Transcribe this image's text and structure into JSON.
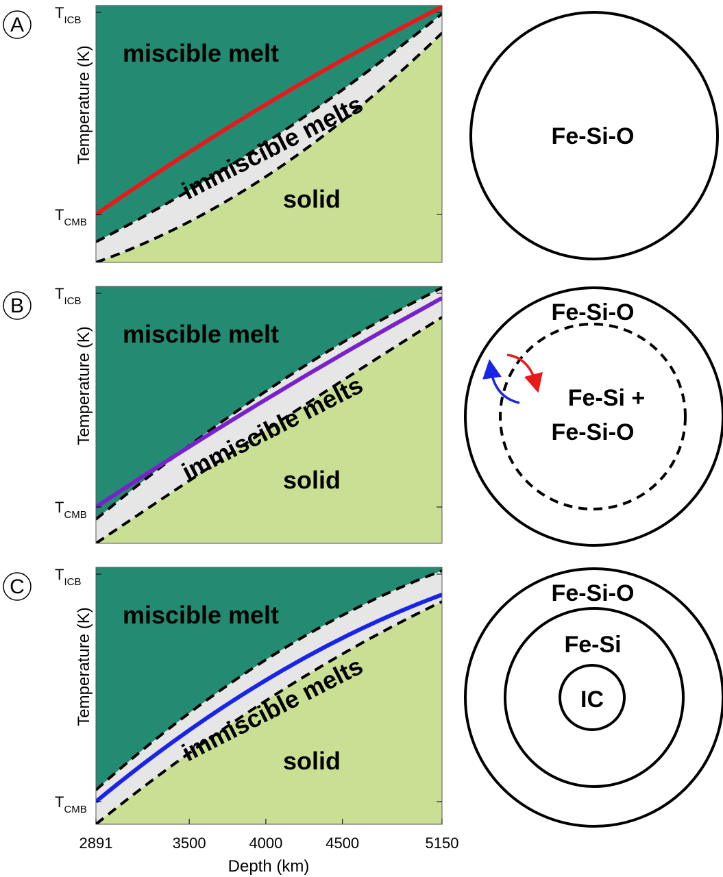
{
  "panels": [
    {
      "letter": "A",
      "y_label": "Temperature (K)",
      "y_ticks": [
        {
          "main": "T",
          "sub": "ICB"
        },
        {
          "main": "T",
          "sub": "CMB"
        }
      ],
      "regions": [
        "miscible melt",
        "immiscible melts",
        "solid"
      ],
      "core_labels": [
        "Fe-Si-O"
      ]
    },
    {
      "letter": "B",
      "y_label": "Temperature (K)",
      "y_ticks": [
        {
          "main": "T",
          "sub": "ICB"
        },
        {
          "main": "T",
          "sub": "CMB"
        }
      ],
      "regions": [
        "miscible melt",
        "immiscible melts",
        "solid"
      ],
      "core_labels": [
        "Fe-Si-O",
        "Fe-Si +",
        "Fe-Si-O"
      ]
    },
    {
      "letter": "C",
      "y_label": "Temperature (K)",
      "y_ticks": [
        {
          "main": "T",
          "sub": "ICB"
        },
        {
          "main": "T",
          "sub": "CMB"
        }
      ],
      "regions": [
        "miscible melt",
        "immiscible melts",
        "solid"
      ],
      "core_labels": [
        "Fe-Si-O",
        "Fe-Si",
        "IC"
      ]
    }
  ],
  "x_axis": {
    "label": "Depth (km)",
    "ticks": [
      2891,
      3500,
      4000,
      4500,
      5150
    ]
  }
}
